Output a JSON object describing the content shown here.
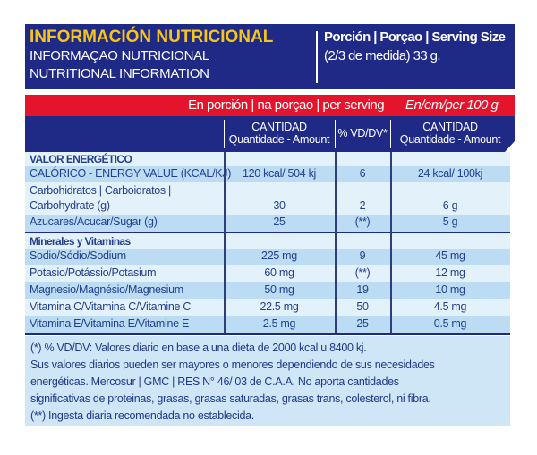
{
  "header": {
    "title": "INFORMACIÓN NUTRICIONAL",
    "title_pt": "INFORMAÇAO NUTRICIONAL",
    "title_en": "NUTRITIONAL INFORMATION",
    "serving_label": "Porción | Porçao | Serving Size",
    "serving_value": "(2/3 de medida) 33 g."
  },
  "band": {
    "per_serving": "En porción | na porçao | per serving",
    "per_100": "En/em/per 100 g"
  },
  "columns": [
    {
      "line1": "CANTIDAD",
      "line2": "Quantidade - Amount"
    },
    {
      "line1": "% VD/DV*"
    },
    {
      "line1": "CANTIDAD",
      "line2": "Quantidade - Amount"
    }
  ],
  "sections": [
    {
      "title": "VALOR ENERGÉTICO",
      "rows": [
        {
          "name": "CALÓRICO - ENERGY VALUE (KCAL/KJ)",
          "amount": "120 kcal/ 504 kj",
          "dv": "6",
          "per100": "24 kcal/ 100kj"
        },
        {
          "name": "Carbohidratos | Carboidratos |",
          "name2": "Carbohydrate (g)",
          "amount": "30",
          "dv": "2",
          "per100": "6 g"
        },
        {
          "name": "Azucares/Acucar/Sugar (g)",
          "amount": "25",
          "dv": "(**)",
          "per100": "5 g"
        }
      ]
    },
    {
      "title": "Minerales y Vitaminas",
      "rows": [
        {
          "name": "Sodio/Sódio/Sodium",
          "amount": "225 mg",
          "dv": "9",
          "per100": "45 mg"
        },
        {
          "name": "Potasio/Potássio/Potasium",
          "amount": "60 mg",
          "dv": "(**)",
          "per100": "12 mg"
        },
        {
          "name": "Magnesio/Magnésio/Magnesium",
          "amount": "50 mg",
          "dv": "19",
          "per100": "10 mg"
        },
        {
          "name": "Vitamina C/Vitamina C/Vitamine C",
          "amount": "22.5 mg",
          "dv": "50",
          "per100": "4.5 mg"
        },
        {
          "name": "Vitamina E/Vitamina E/Vitamine E",
          "amount": "2.5 mg",
          "dv": "25",
          "per100": "0.5 mg"
        }
      ]
    }
  ],
  "footnotes": [
    "(*) % VD/DV: Valores diario en base a una dieta de 2000 kcal u 8400 kj.",
    "Sus valores diarios pueden ser mayores o menores dependiendo de sus necesidades",
    "energéticas. Mercosur | GMC | RES N° 46/ 03 de C.A.A. No aporta cantidades",
    "significativas de proteinas, grasas, grasas saturadas, grasas trans, colesterol, ni fibra.",
    "(**) Ingesta diaria recomendada no establecida."
  ]
}
